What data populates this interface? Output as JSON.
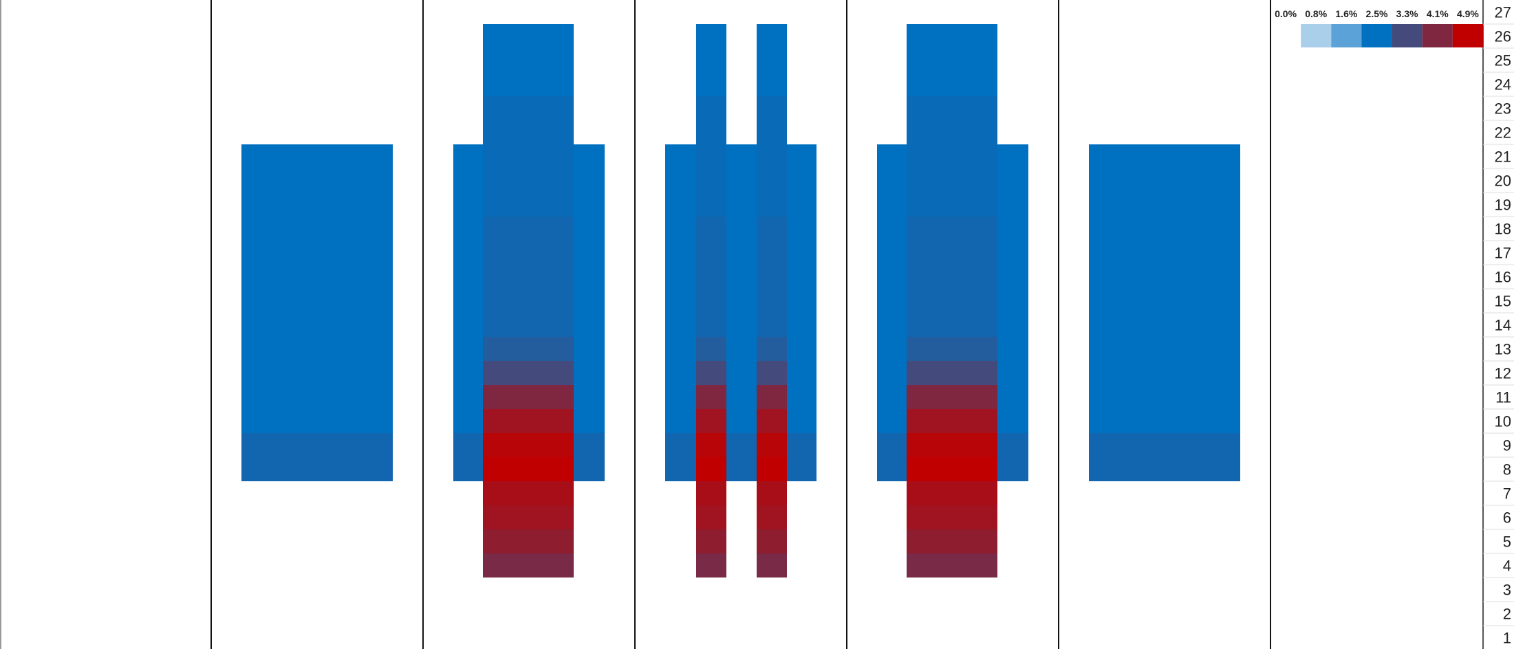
{
  "chart_data": {
    "type": "heatmap",
    "title": "",
    "xlabel": "",
    "ylabel": "",
    "legend": {
      "position": "top-right",
      "labels": [
        "0.0%",
        "0.8%",
        "1.6%",
        "2.5%",
        "3.3%",
        "4.1%",
        "4.9%"
      ],
      "colors": [
        "#a9cfeb",
        "#5aa2d8",
        "#0070c0",
        "#454a7c",
        "#7f2640",
        "#c00000"
      ]
    },
    "value_range": [
      0.0,
      4.9
    ],
    "rows": [
      "27",
      "26",
      "25",
      "24",
      "23",
      "22",
      "21",
      "20",
      "19",
      "18",
      "17",
      "16",
      "15",
      "14",
      "13",
      "12",
      "11",
      "10",
      "9",
      "8",
      "7",
      "6",
      "5",
      "4",
      "3",
      "2",
      "1"
    ],
    "columns": [
      {
        "bands": []
      },
      {
        "bands": [
          {
            "from_row": 8,
            "to_row": 21,
            "values": [
              2.7,
              2.7,
              2.5,
              2.5,
              2.5,
              2.5,
              2.5,
              2.5,
              2.5,
              2.5,
              2.5,
              2.5,
              2.5,
              2.5
            ]
          }
        ]
      },
      {
        "bands": [
          {
            "from_row": 8,
            "to_row": 21,
            "values": [
              2.7,
              2.7,
              2.5,
              2.5,
              2.5,
              2.5,
              2.5,
              2.5,
              2.5,
              2.5,
              2.5,
              2.5,
              2.5,
              2.5
            ]
          },
          {
            "from_row": 4,
            "to_row": 26,
            "values": [
              4.0,
              4.3,
              4.5,
              4.6,
              4.9,
              4.8,
              4.5,
              4.1,
              3.3,
              2.9,
              2.7,
              2.7,
              2.7,
              2.7,
              2.7,
              2.6,
              2.6,
              2.6,
              2.6,
              2.6,
              2.5,
              2.5,
              2.5
            ]
          }
        ]
      },
      {
        "bands": [
          {
            "from_row": 8,
            "to_row": 21,
            "values": [
              2.7,
              2.7,
              2.5,
              2.5,
              2.5,
              2.5,
              2.5,
              2.5,
              2.5,
              2.5,
              2.5,
              2.5,
              2.5,
              2.5
            ]
          },
          {
            "from_row": 4,
            "to_row": 26,
            "values": [
              4.0,
              4.3,
              4.5,
              4.6,
              4.9,
              4.8,
              4.5,
              4.1,
              3.3,
              2.9,
              2.7,
              2.7,
              2.7,
              2.7,
              2.7,
              2.6,
              2.6,
              2.6,
              2.6,
              2.6,
              2.5,
              2.5,
              2.5
            ]
          },
          {
            "from_row": 4,
            "to_row": 26,
            "values": [
              4.0,
              4.3,
              4.5,
              4.6,
              4.9,
              4.8,
              4.5,
              4.1,
              3.3,
              2.9,
              2.7,
              2.7,
              2.7,
              2.7,
              2.7,
              2.6,
              2.6,
              2.6,
              2.6,
              2.6,
              2.5,
              2.5,
              2.5
            ]
          }
        ]
      },
      {
        "bands": [
          {
            "from_row": 8,
            "to_row": 21,
            "values": [
              2.7,
              2.7,
              2.5,
              2.5,
              2.5,
              2.5,
              2.5,
              2.5,
              2.5,
              2.5,
              2.5,
              2.5,
              2.5,
              2.5
            ]
          },
          {
            "from_row": 4,
            "to_row": 26,
            "values": [
              4.0,
              4.3,
              4.5,
              4.6,
              4.9,
              4.8,
              4.5,
              4.1,
              3.3,
              2.9,
              2.7,
              2.7,
              2.7,
              2.7,
              2.7,
              2.6,
              2.6,
              2.6,
              2.6,
              2.6,
              2.5,
              2.5,
              2.5
            ]
          }
        ]
      },
      {
        "bands": [
          {
            "from_row": 8,
            "to_row": 21,
            "values": [
              2.7,
              2.7,
              2.5,
              2.5,
              2.5,
              2.5,
              2.5,
              2.5,
              2.5,
              2.5,
              2.5,
              2.5,
              2.5,
              2.5
            ]
          }
        ]
      }
    ]
  }
}
